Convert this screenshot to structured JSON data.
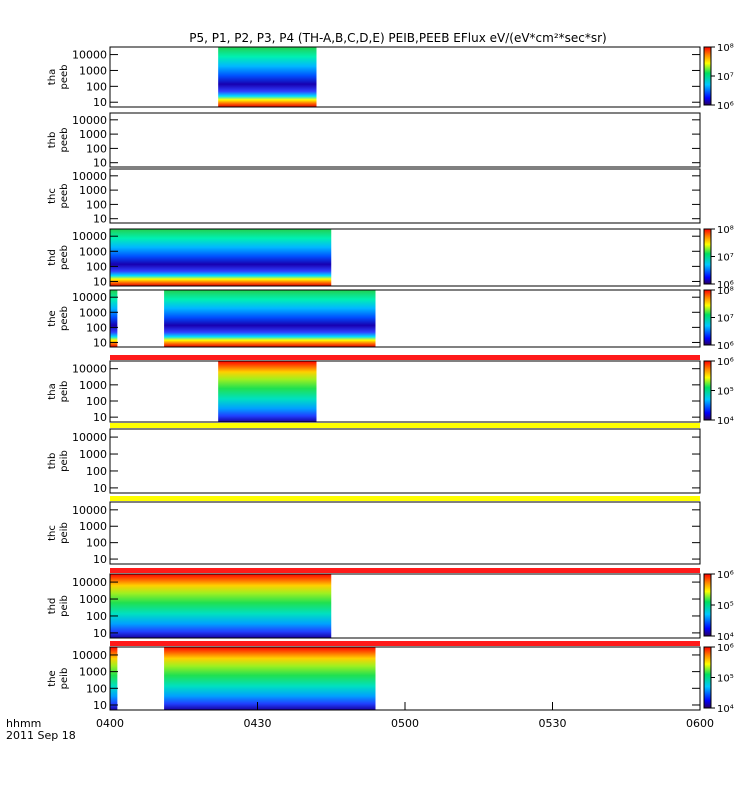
{
  "chart_data": {
    "type": "heatmap",
    "title": "P5, P1, P2, P3, P4 (TH-A,B,C,D,E) PEIB,PEEB EFlux eV/(eV*cm²*sec*sr)",
    "xlabel": "hhmm",
    "date_label": "2011 Sep 18",
    "x_ticks": [
      "0400",
      "0430",
      "0500",
      "0530",
      "0600"
    ],
    "x_range_minutes": [
      0,
      120
    ],
    "y_ticks": [
      "10",
      "100",
      "1000",
      "10000"
    ],
    "y_scale": "log",
    "ylim": [
      5,
      30000
    ],
    "colormap": "rainbow",
    "panels": [
      {
        "label_line1": "tha",
        "label_line2": "peeb",
        "segments": [
          [
            22,
            42,
            "peeb"
          ]
        ],
        "colorbar": {
          "ticks": [
            "10⁶",
            "10⁷",
            "10⁸"
          ],
          "range": [
            6,
            8
          ]
        }
      },
      {
        "label_line1": "thb",
        "label_line2": "peeb",
        "segments": []
      },
      {
        "label_line1": "thc",
        "label_line2": "peeb",
        "segments": []
      },
      {
        "label_line1": "thd",
        "label_line2": "peeb",
        "segments": [
          [
            0,
            45,
            "peeb"
          ]
        ],
        "colorbar": {
          "ticks": [
            "10⁶",
            "10⁷",
            "10⁸"
          ],
          "range": [
            6,
            8
          ]
        }
      },
      {
        "label_line1": "the",
        "label_line2": "peeb",
        "segments": [
          [
            0,
            1.5,
            "peeb"
          ],
          [
            11,
            54,
            "peeb"
          ]
        ],
        "colorbar": {
          "ticks": [
            "10⁶",
            "10⁷",
            "10⁸"
          ],
          "range": [
            6,
            8
          ]
        }
      },
      {
        "label_line1": "tha",
        "label_line2": "peib",
        "segments": [
          [
            22,
            42,
            "peib"
          ]
        ],
        "bar_above": "red",
        "colorbar": {
          "ticks": [
            "10⁴",
            "10⁵",
            "10⁶"
          ],
          "range": [
            4,
            6
          ]
        }
      },
      {
        "label_line1": "thb",
        "label_line2": "peib",
        "segments": [],
        "bar_above": "yellow"
      },
      {
        "label_line1": "thc",
        "label_line2": "peib",
        "segments": [],
        "bar_above": "yellow"
      },
      {
        "label_line1": "thd",
        "label_line2": "peib",
        "segments": [
          [
            0,
            45,
            "peib"
          ]
        ],
        "bar_above": "red",
        "colorbar": {
          "ticks": [
            "10⁴",
            "10⁵",
            "10⁶"
          ],
          "range": [
            4,
            6
          ]
        }
      },
      {
        "label_line1": "the",
        "label_line2": "peib",
        "segments": [
          [
            0,
            1.5,
            "peib"
          ],
          [
            11,
            54,
            "peib"
          ]
        ],
        "bar_above": "red",
        "colorbar": {
          "ticks": [
            "10⁴",
            "10⁵",
            "10⁶"
          ],
          "range": [
            4,
            6
          ]
        }
      }
    ]
  }
}
